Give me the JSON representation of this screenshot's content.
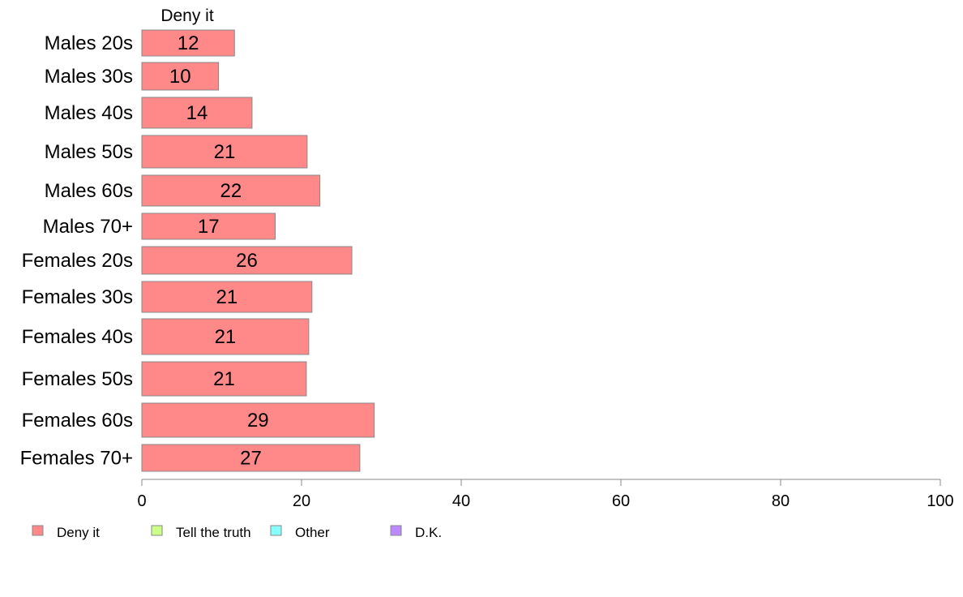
{
  "chart_data": {
    "type": "bar",
    "orientation": "horizontal",
    "series_header": "Deny it",
    "categories": [
      "Males 20s",
      "Males 30s",
      "Males 40s",
      "Males 50s",
      "Males 60s",
      "Males 70+",
      "Females 20s",
      "Females 30s",
      "Females 40s",
      "Females 50s",
      "Females 60s",
      "Females 70+"
    ],
    "values": [
      11.6,
      9.6,
      13.8,
      20.7,
      22.3,
      16.7,
      26.3,
      21.3,
      20.9,
      20.6,
      29.1,
      27.3
    ],
    "data_labels": [
      "12",
      "10",
      "14",
      "21",
      "22",
      "17",
      "26",
      "21",
      "21",
      "21",
      "29",
      "27"
    ],
    "xlim": [
      0,
      100
    ],
    "xticks": [
      "0",
      "20",
      "40",
      "60",
      "80",
      "100"
    ],
    "grid": false,
    "legend_position": "bottom",
    "legend": [
      {
        "label": "Deny it",
        "color": "#ff8888"
      },
      {
        "label": "Tell the truth",
        "color": "#ccff88"
      },
      {
        "label": "Other",
        "color": "#88ffff"
      },
      {
        "label": "D.K.",
        "color": "#bb88ff"
      }
    ],
    "bar_color": "#ff8888",
    "bar_stroke": "#888888"
  }
}
